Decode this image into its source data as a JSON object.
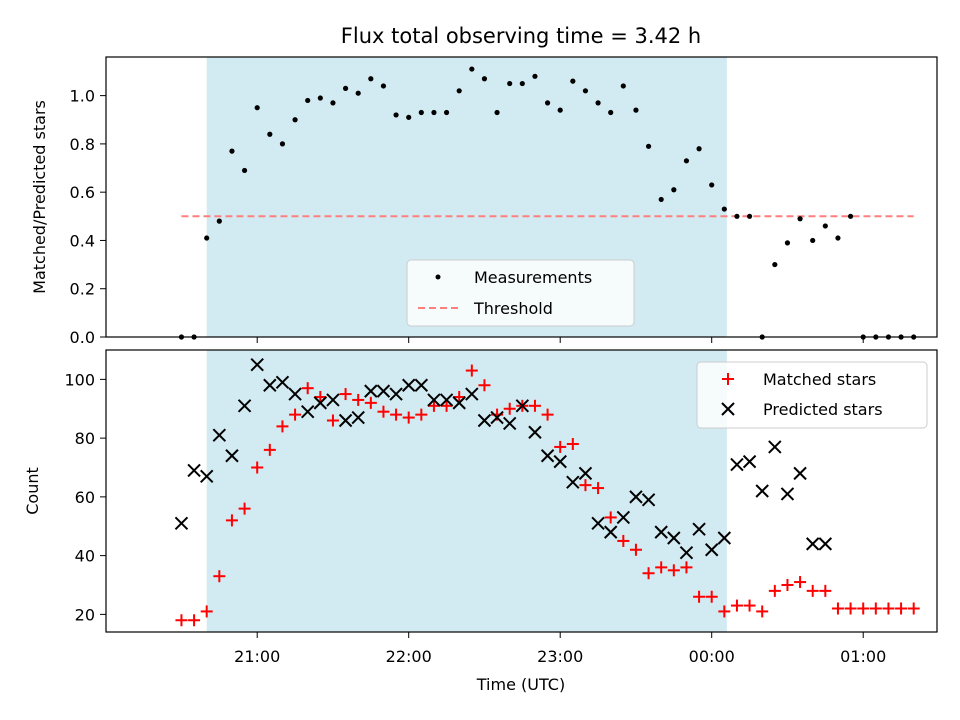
{
  "chart_data": [
    {
      "type": "scatter",
      "title": "Flux total observing time = 3.42 h",
      "xlabel": "",
      "ylabel": "Matched/Predicted stars",
      "ylim": [
        0.0,
        1.16
      ],
      "yticks": [
        "0.0",
        "0.2",
        "0.4",
        "0.6",
        "0.8",
        "1.0"
      ],
      "ytick_values": [
        0.0,
        0.2,
        0.4,
        0.6,
        0.8,
        1.0
      ],
      "observing_window": {
        "start": "20:40",
        "end": "00:06",
        "color": "#add8e6"
      },
      "threshold": {
        "value": 0.5,
        "from": "20:30",
        "to": "01:20",
        "color": "#ff7f7f"
      },
      "legend": {
        "position": "lower-center",
        "entries": [
          "Measurements",
          "Threshold"
        ]
      },
      "series": [
        {
          "name": "Measurements",
          "marker": "dot",
          "color": "#000000",
          "x": [
            "20:30",
            "20:35",
            "20:40",
            "20:45",
            "20:50",
            "20:55",
            "21:00",
            "21:05",
            "21:10",
            "21:15",
            "21:20",
            "21:25",
            "21:30",
            "21:35",
            "21:40",
            "21:45",
            "21:50",
            "21:55",
            "22:00",
            "22:05",
            "22:10",
            "22:15",
            "22:20",
            "22:25",
            "22:30",
            "22:35",
            "22:40",
            "22:45",
            "22:50",
            "22:55",
            "23:00",
            "23:05",
            "23:10",
            "23:15",
            "23:20",
            "23:25",
            "23:30",
            "23:35",
            "23:40",
            "23:45",
            "23:50",
            "23:55",
            "00:00",
            "00:05",
            "00:10",
            "00:15",
            "00:20",
            "00:25",
            "00:30",
            "00:35",
            "00:40",
            "00:45",
            "00:50",
            "00:55",
            "01:00",
            "01:05",
            "01:10",
            "01:15",
            "01:20"
          ],
          "values": [
            0.0,
            0.0,
            0.41,
            0.48,
            0.77,
            0.69,
            0.95,
            0.84,
            0.8,
            0.9,
            0.98,
            0.99,
            0.97,
            1.03,
            1.01,
            1.07,
            1.04,
            0.92,
            0.91,
            0.93,
            0.93,
            0.93,
            1.02,
            1.11,
            1.07,
            0.93,
            1.05,
            1.05,
            1.08,
            0.97,
            0.94,
            1.06,
            1.02,
            0.97,
            0.93,
            1.04,
            0.94,
            0.79,
            0.57,
            0.61,
            0.73,
            0.78,
            0.63,
            0.53,
            0.5,
            0.5,
            0.0,
            0.3,
            0.39,
            0.49,
            0.4,
            0.46,
            0.41,
            0.5,
            0.0,
            0.0,
            0.0,
            0.0,
            0.0
          ]
        }
      ]
    },
    {
      "type": "scatter",
      "title": "",
      "xlabel": "Time (UTC)",
      "ylabel": "Count",
      "ylim": [
        14,
        110
      ],
      "yticks": [
        "20",
        "40",
        "60",
        "80",
        "100"
      ],
      "ytick_values": [
        20,
        40,
        60,
        80,
        100
      ],
      "xticks": [
        "21:00",
        "22:00",
        "23:00",
        "00:00",
        "01:00"
      ],
      "observing_window": {
        "start": "20:40",
        "end": "00:06",
        "color": "#add8e6"
      },
      "legend": {
        "position": "top-right",
        "entries": [
          "Matched stars",
          "Predicted stars"
        ]
      },
      "series": [
        {
          "name": "Matched stars",
          "marker": "plus",
          "color": "#ff0000",
          "x": [
            "20:30",
            "20:35",
            "20:40",
            "20:45",
            "20:50",
            "20:55",
            "21:00",
            "21:05",
            "21:10",
            "21:15",
            "21:20",
            "21:25",
            "21:30",
            "21:35",
            "21:40",
            "21:45",
            "21:50",
            "21:55",
            "22:00",
            "22:05",
            "22:10",
            "22:15",
            "22:20",
            "22:25",
            "22:30",
            "22:35",
            "22:40",
            "22:45",
            "22:50",
            "22:55",
            "23:00",
            "23:05",
            "23:10",
            "23:15",
            "23:20",
            "23:25",
            "23:30",
            "23:35",
            "23:40",
            "23:45",
            "23:50",
            "23:55",
            "00:00",
            "00:05",
            "00:10",
            "00:15",
            "00:20",
            "00:25",
            "00:30",
            "00:35",
            "00:40",
            "00:45",
            "00:50",
            "00:55",
            "01:00",
            "01:05",
            "01:10",
            "01:15",
            "01:20"
          ],
          "values": [
            18,
            18,
            21,
            33,
            52,
            56,
            70,
            76,
            84,
            88,
            97,
            94,
            86,
            95,
            93,
            92,
            89,
            88,
            87,
            88,
            91,
            91,
            94,
            103,
            98,
            88,
            90,
            91,
            91,
            88,
            77,
            78,
            64,
            63,
            53,
            45,
            42,
            34,
            36,
            35,
            36,
            26,
            26,
            21,
            23,
            23,
            21,
            28,
            30,
            31,
            28,
            28,
            22,
            22,
            22,
            22,
            22,
            22,
            22
          ]
        },
        {
          "name": "Predicted stars",
          "marker": "x",
          "color": "#000000",
          "x": [
            "20:30",
            "20:35",
            "20:40",
            "20:45",
            "20:50",
            "20:55",
            "21:00",
            "21:05",
            "21:10",
            "21:15",
            "21:20",
            "21:25",
            "21:30",
            "21:35",
            "21:40",
            "21:45",
            "21:50",
            "21:55",
            "22:00",
            "22:05",
            "22:10",
            "22:15",
            "22:20",
            "22:25",
            "22:30",
            "22:35",
            "22:40",
            "22:45",
            "22:50",
            "22:55",
            "23:00",
            "23:05",
            "23:10",
            "23:15",
            "23:20",
            "23:25",
            "23:30",
            "23:35",
            "23:40",
            "23:45",
            "23:50",
            "23:55",
            "00:00",
            "00:05",
            "00:10",
            "00:15",
            "00:20",
            "00:25",
            "00:30",
            "00:35",
            "00:40",
            "00:45"
          ],
          "values": [
            51,
            69,
            67,
            81,
            74,
            91,
            105,
            98,
            99,
            95,
            89,
            92,
            93,
            86,
            87,
            96,
            96,
            95,
            98,
            98,
            93,
            93,
            92,
            95,
            86,
            87,
            85,
            91,
            82,
            74,
            72,
            65,
            68,
            51,
            48,
            53,
            60,
            59,
            48,
            46,
            41,
            49,
            42,
            46,
            71,
            72,
            62,
            77,
            61,
            68,
            44,
            44
          ]
        }
      ]
    }
  ]
}
